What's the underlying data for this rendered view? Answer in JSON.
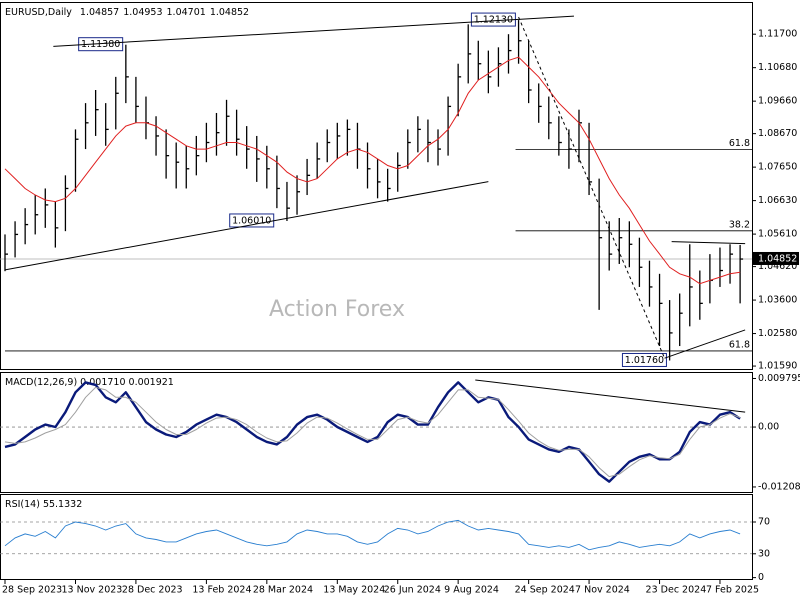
{
  "chart_data": [
    {
      "type": "ohlc",
      "title": "EURUSD,Daily",
      "header_values": [
        1.04857,
        1.04953,
        1.04701,
        1.04852
      ],
      "watermark": "Action Forex",
      "color": "#000000",
      "categories": [
        "28 Sep 2023",
        null,
        null,
        null,
        null,
        null,
        null,
        "13 Nov 2023",
        null,
        null,
        null,
        null,
        null,
        "28 Dec 2023",
        null,
        null,
        null,
        null,
        null,
        null,
        "13 Feb 2024",
        null,
        null,
        null,
        null,
        null,
        "28 Mar 2024",
        null,
        null,
        null,
        null,
        null,
        null,
        "13 May 2024",
        null,
        null,
        null,
        null,
        null,
        "26 Jun 2024",
        null,
        null,
        null,
        null,
        null,
        "9 Aug 2024",
        null,
        null,
        null,
        null,
        null,
        null,
        "24 Sep 2024",
        null,
        null,
        null,
        null,
        null,
        "7 Nov 2024",
        null,
        null,
        null,
        null,
        null,
        null,
        "23 Dec 2024",
        null,
        null,
        null,
        null,
        null,
        "7 Feb 2025",
        null,
        null
      ],
      "high": [
        1.056,
        1.06,
        1.064,
        1.068,
        1.07,
        1.066,
        1.074,
        1.088,
        1.096,
        1.1,
        1.096,
        1.104,
        1.1138,
        1.104,
        1.098,
        1.092,
        1.088,
        1.084,
        1.083,
        1.086,
        1.09,
        1.093,
        1.097,
        1.094,
        1.089,
        1.086,
        1.083,
        1.08,
        1.072,
        1.074,
        1.079,
        1.084,
        1.088,
        1.09,
        1.091,
        1.09,
        1.084,
        1.079,
        1.076,
        1.081,
        1.088,
        1.092,
        1.091,
        1.088,
        1.098,
        1.108,
        1.12,
        1.115,
        1.112,
        1.113,
        1.117,
        1.1213,
        1.115,
        1.102,
        1.098,
        1.092,
        1.088,
        1.094,
        1.09,
        1.073,
        1.06,
        1.061,
        1.06,
        1.055,
        1.048,
        1.044,
        1.036,
        1.038,
        1.053,
        1.045,
        1.05,
        1.052,
        1.053,
        1.0528
      ],
      "low": [
        1.0448,
        1.049,
        1.053,
        1.056,
        1.058,
        1.052,
        1.057,
        1.069,
        1.082,
        1.086,
        1.083,
        1.088,
        1.096,
        1.09,
        1.085,
        1.08,
        1.073,
        1.07,
        1.07,
        1.074,
        1.078,
        1.08,
        1.083,
        1.08,
        1.076,
        1.072,
        1.07,
        1.064,
        1.0601,
        1.062,
        1.068,
        1.073,
        1.078,
        1.079,
        1.08,
        1.076,
        1.07,
        1.067,
        1.066,
        1.069,
        1.076,
        1.081,
        1.078,
        1.077,
        1.08,
        1.092,
        1.102,
        1.103,
        1.099,
        1.101,
        1.105,
        1.108,
        1.096,
        1.09,
        1.085,
        1.08,
        1.076,
        1.078,
        1.068,
        1.033,
        1.045,
        1.047,
        1.046,
        1.04,
        1.034,
        1.022,
        1.0176,
        1.022,
        1.028,
        1.03,
        1.035,
        1.04,
        1.041,
        1.035
      ],
      "close": [
        1.05,
        1.056,
        1.059,
        1.062,
        1.065,
        1.058,
        1.07,
        1.085,
        1.09,
        1.094,
        1.088,
        1.099,
        1.104,
        1.095,
        1.09,
        1.086,
        1.08,
        1.078,
        1.076,
        1.08,
        1.084,
        1.087,
        1.092,
        1.085,
        1.082,
        1.079,
        1.076,
        1.07,
        1.064,
        1.069,
        1.074,
        1.079,
        1.084,
        1.086,
        1.088,
        1.082,
        1.076,
        1.072,
        1.07,
        1.077,
        1.084,
        1.088,
        1.084,
        1.082,
        1.095,
        1.104,
        1.111,
        1.108,
        1.104,
        1.108,
        1.112,
        1.115,
        1.1,
        1.095,
        1.09,
        1.084,
        1.082,
        1.09,
        1.072,
        1.055,
        1.05,
        1.055,
        1.053,
        1.046,
        1.04,
        1.035,
        1.026,
        1.032,
        1.04,
        1.035,
        1.042,
        1.045,
        1.05,
        1.0485
      ],
      "ma": {
        "color": "#e02020",
        "values": [
          1.076,
          1.073,
          1.07,
          1.068,
          1.0665,
          1.066,
          1.067,
          1.07,
          1.074,
          1.078,
          1.082,
          1.086,
          1.089,
          1.09,
          1.09,
          1.089,
          1.087,
          1.085,
          1.083,
          1.082,
          1.082,
          1.083,
          1.084,
          1.084,
          1.083,
          1.082,
          1.08,
          1.078,
          1.075,
          1.073,
          1.072,
          1.073,
          1.076,
          1.079,
          1.081,
          1.082,
          1.081,
          1.079,
          1.077,
          1.076,
          1.077,
          1.08,
          1.083,
          1.085,
          1.088,
          1.093,
          1.099,
          1.103,
          1.105,
          1.107,
          1.109,
          1.11,
          1.107,
          1.104,
          1.1,
          1.096,
          1.093,
          1.09,
          1.085,
          1.079,
          1.073,
          1.068,
          1.064,
          1.059,
          1.054,
          1.05,
          1.046,
          1.044,
          1.043,
          1.041,
          1.042,
          1.043,
          1.044,
          1.0445
        ]
      },
      "ylim": [
        1.0147,
        1.1265
      ],
      "yticks": [
        {
          "value": 1.117,
          "label": "1.11700"
        },
        {
          "value": 1.1068,
          "label": "1.10680"
        },
        {
          "value": 1.0966,
          "label": "1.09660"
        },
        {
          "value": 1.0867,
          "label": "1.08670"
        },
        {
          "value": 1.0765,
          "label": "1.07650"
        },
        {
          "value": 1.0663,
          "label": "1.06630"
        },
        {
          "value": 1.0561,
          "label": "1.05610"
        },
        {
          "value": 1.0462,
          "label": "1.04620"
        },
        {
          "value": 1.036,
          "label": "1.03600"
        },
        {
          "value": 1.0258,
          "label": "1.02580"
        },
        {
          "value": 1.0159,
          "label": "1.01590"
        }
      ],
      "last_price": {
        "value": 1.04852,
        "label": "1.04852"
      },
      "trendlines": [
        {
          "x": [
            4.8,
            56.5
          ],
          "values": [
            1.1133,
            1.1225
          ],
          "dashed": false
        },
        {
          "x": [
            0,
            48
          ],
          "values": [
            1.0452,
            1.0721
          ],
          "dashed": false
        },
        {
          "x": [
            65.5,
            73.5
          ],
          "values": [
            1.0183,
            1.0269
          ],
          "dashed": false
        },
        {
          "x": [
            66.2,
            73.5
          ],
          "values": [
            1.0538,
            1.0532
          ],
          "dashed": false
        },
        {
          "x": [
            51,
            65.5
          ],
          "values": [
            1.1222,
            1.0183
          ],
          "dashed": true
        }
      ],
      "levels": [
        {
          "value": 1.0819,
          "label": "61.8",
          "from": 50.7
        },
        {
          "value": 1.0571,
          "label": "38.2",
          "from": 50.7
        },
        {
          "value": 1.0205,
          "label": "61.8",
          "from": 0
        }
      ],
      "price_labels": [
        {
          "x": 9.5,
          "value": 1.1138,
          "label": "1.11380"
        },
        {
          "x": 48.5,
          "value": 1.1213,
          "label": "1.12130"
        },
        {
          "x": 24.5,
          "value": 1.0601,
          "label": "1.06010"
        },
        {
          "x": 63.5,
          "value": 1.0176,
          "label": "1.01760"
        }
      ]
    },
    {
      "type": "macd",
      "title": "MACD(12,26,9) 0.001710 0.001921",
      "series": [
        {
          "color": "#0a1a7a",
          "values": [
            -0.004,
            -0.0035,
            -0.002,
            -0.0005,
            0.0005,
            0,
            0.003,
            0.007,
            0.009,
            0.0085,
            0.006,
            0.005,
            0.007,
            0.004,
            0.001,
            -0.0005,
            -0.0015,
            -0.002,
            -0.001,
            0.0005,
            0.0015,
            0.0025,
            0.002,
            0.001,
            -0.0005,
            -0.002,
            -0.003,
            -0.0035,
            -0.002,
            0.0005,
            0.002,
            0.0025,
            0.0015,
            0,
            -0.001,
            -0.002,
            -0.003,
            -0.002,
            0.001,
            0.0025,
            0.002,
            0.0005,
            0.0005,
            0.004,
            0.007,
            0.009,
            0.007,
            0.005,
            0.006,
            0.0055,
            0.002,
            0,
            -0.0025,
            -0.0035,
            -0.0045,
            -0.005,
            -0.004,
            -0.0045,
            -0.007,
            -0.0095,
            -0.011,
            -0.009,
            -0.007,
            -0.006,
            -0.0055,
            -0.0065,
            -0.0065,
            -0.005,
            -0.001,
            0.001,
            0.0005,
            0.0025,
            0.003,
            0.0017
          ]
        },
        {
          "color": "#a0a0a0",
          "values": [
            -0.003,
            -0.0033,
            -0.003,
            -0.0022,
            -0.0012,
            -0.0005,
            0.0005,
            0.003,
            0.006,
            0.008,
            0.0075,
            0.006,
            0.006,
            0.005,
            0.003,
            0.001,
            -0.0005,
            -0.0015,
            -0.0015,
            -0.0005,
            0.0008,
            0.0018,
            0.002,
            0.0015,
            0.0005,
            -0.001,
            -0.0022,
            -0.003,
            -0.0028,
            -0.0012,
            0.0008,
            0.002,
            0.0018,
            0.0008,
            -0.0004,
            -0.0015,
            -0.0025,
            -0.0025,
            -0.0005,
            0.0015,
            0.002,
            0.0012,
            0.0008,
            0.0025,
            0.005,
            0.0075,
            0.0075,
            0.006,
            0.0058,
            0.0056,
            0.0035,
            0.0012,
            -0.0012,
            -0.0028,
            -0.004,
            -0.0047,
            -0.0045,
            -0.0045,
            -0.006,
            -0.0082,
            -0.01,
            -0.0095,
            -0.008,
            -0.0066,
            -0.0058,
            -0.0062,
            -0.0064,
            -0.0055,
            -0.0025,
            0,
            0.0005,
            0.0018,
            0.0027,
            0.0019
          ]
        }
      ],
      "ylim": [
        -0.0133,
        0.0109
      ],
      "yticks": [
        0.009795,
        {
          "value": 0,
          "label": "0.00"
        },
        -0.012081
      ],
      "levels": [
        0
      ],
      "trendlines": [
        {
          "x": [
            46.7,
            73.5
          ],
          "values": [
            0.0095,
            0.003
          ],
          "dashed": false
        }
      ]
    },
    {
      "type": "line",
      "title": "RSI(14) 55.1332",
      "color": "#2a7fd0",
      "values": [
        40,
        50,
        55,
        52,
        58,
        50,
        65,
        70,
        68,
        65,
        60,
        65,
        68,
        55,
        50,
        48,
        45,
        45,
        50,
        55,
        58,
        60,
        55,
        50,
        45,
        42,
        40,
        42,
        45,
        55,
        60,
        58,
        55,
        55,
        52,
        45,
        42,
        45,
        55,
        62,
        60,
        55,
        58,
        65,
        70,
        72,
        65,
        60,
        62,
        60,
        58,
        55,
        42,
        40,
        38,
        40,
        38,
        42,
        35,
        38,
        40,
        45,
        42,
        38,
        40,
        42,
        40,
        45,
        55,
        50,
        55,
        58,
        60,
        55
      ],
      "ylim": [
        -3,
        104
      ],
      "yticks": [
        70,
        30,
        0
      ],
      "levels": [
        70,
        30
      ]
    }
  ]
}
